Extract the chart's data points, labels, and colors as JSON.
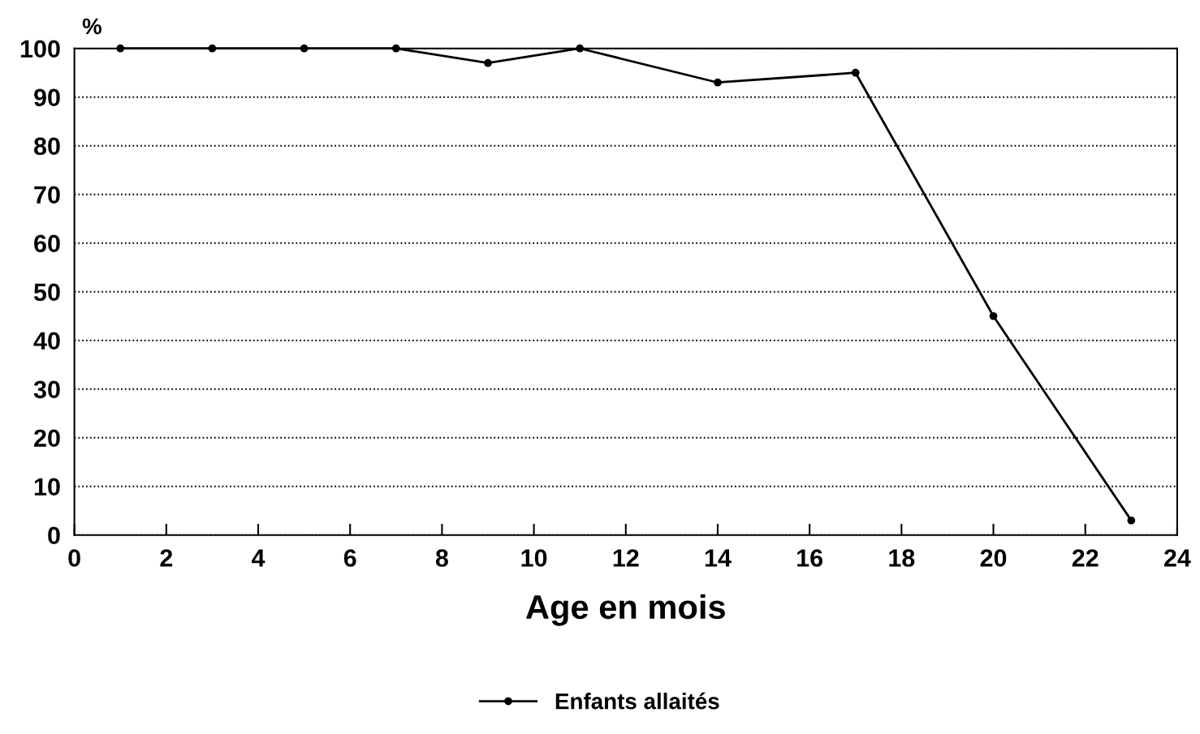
{
  "chart_data": {
    "type": "line",
    "xlabel": "Age en mois",
    "ylabel": "%",
    "x": [
      1,
      3,
      5,
      7,
      9,
      11,
      14,
      17,
      20,
      23
    ],
    "series": [
      {
        "name": "Enfants allaités",
        "color": "#000000",
        "values": [
          100,
          100,
          100,
          100,
          97,
          100,
          93,
          95,
          45,
          3
        ]
      }
    ],
    "xlim": [
      0,
      24
    ],
    "xticks": [
      0,
      2,
      4,
      6,
      8,
      10,
      12,
      14,
      16,
      18,
      20,
      22,
      24
    ],
    "ylim": [
      0,
      100
    ],
    "yticks": [
      0,
      10,
      20,
      30,
      40,
      50,
      60,
      70,
      80,
      90,
      100
    ],
    "grid": "y",
    "legend": "bottom",
    "marker": "circle",
    "line_style": "solid"
  }
}
